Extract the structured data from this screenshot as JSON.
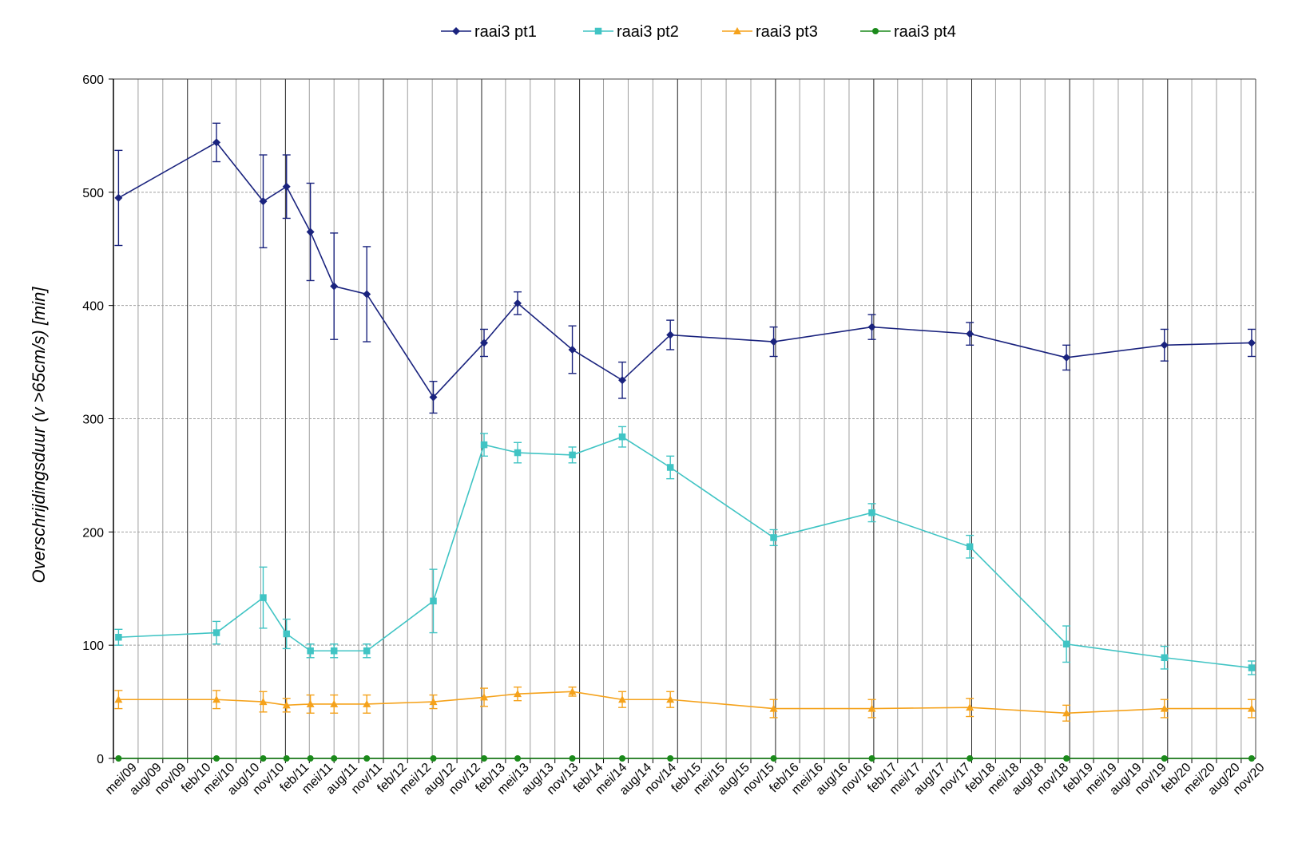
{
  "chart_data": {
    "type": "line",
    "title": "",
    "xlabel": "",
    "ylabel": "Overschrijdingsduur  (v >65cm/s) [min]",
    "ylim": [
      0,
      600
    ],
    "yticks": [
      0,
      100,
      200,
      300,
      400,
      500,
      600
    ],
    "grid": true,
    "legend_position": "top-center",
    "categories": [
      "mei/09",
      "aug/09",
      "nov/09",
      "feb/10",
      "mei/10",
      "aug/10",
      "nov/10",
      "feb/11",
      "mei/11",
      "aug/11",
      "nov/11",
      "feb/12",
      "mei/12",
      "aug/12",
      "nov/12",
      "feb/13",
      "mei/13",
      "aug/13",
      "nov/13",
      "feb/14",
      "mei/14",
      "aug/14",
      "nov/14",
      "feb/15",
      "mei/15",
      "aug/15",
      "nov/15",
      "feb/16",
      "mei/16",
      "aug/16",
      "nov/16",
      "feb/17",
      "mei/17",
      "aug/17",
      "nov/17",
      "feb/18",
      "mei/18",
      "aug/18",
      "nov/18",
      "feb/19",
      "mei/19",
      "aug/19",
      "nov/19",
      "feb/20",
      "mei/20",
      "aug/20",
      "nov/20"
    ],
    "x_dates": [
      "2009-05",
      "2009-08",
      "2009-11",
      "2010-02",
      "2010-05",
      "2010-08",
      "2010-11",
      "2011-02",
      "2011-05",
      "2011-08",
      "2011-11",
      "2012-02",
      "2012-05",
      "2012-08",
      "2012-11",
      "2013-02",
      "2013-05",
      "2013-08",
      "2013-11",
      "2014-02",
      "2014-05",
      "2014-08",
      "2014-11",
      "2015-02",
      "2015-05",
      "2015-08",
      "2015-11",
      "2016-02",
      "2016-05",
      "2016-08",
      "2016-11",
      "2017-02",
      "2017-05",
      "2017-08",
      "2017-11",
      "2018-02",
      "2018-05",
      "2018-08",
      "2018-11",
      "2019-02",
      "2019-05",
      "2019-08",
      "2019-11",
      "2020-02",
      "2020-05",
      "2020-08",
      "2020-11"
    ],
    "series": [
      {
        "name": "raai3 pt1",
        "color": "#1a237e",
        "marker": "diamond",
        "points": [
          {
            "x": "2009-05-20",
            "y": 495,
            "err": 42
          },
          {
            "x": "2010-05-20",
            "y": 544,
            "err": 17
          },
          {
            "x": "2010-11-10",
            "y": 492,
            "err": 41
          },
          {
            "x": "2011-02-05",
            "y": 505,
            "err": 28
          },
          {
            "x": "2011-05-05",
            "y": 465,
            "err": 43
          },
          {
            "x": "2011-08-01",
            "y": 417,
            "err": 47
          },
          {
            "x": "2011-12-01",
            "y": 410,
            "err": 42
          },
          {
            "x": "2012-08-05",
            "y": 319,
            "err": 14
          },
          {
            "x": "2013-02-10",
            "y": 367,
            "err": 12
          },
          {
            "x": "2013-06-15",
            "y": 402,
            "err": 10
          },
          {
            "x": "2014-01-05",
            "y": 361,
            "err": 21
          },
          {
            "x": "2014-07-10",
            "y": 334,
            "err": 16
          },
          {
            "x": "2015-01-05",
            "y": 374,
            "err": 13
          },
          {
            "x": "2016-01-25",
            "y": 368,
            "err": 13
          },
          {
            "x": "2017-01-25",
            "y": 381,
            "err": 11
          },
          {
            "x": "2018-01-25",
            "y": 375,
            "err": 10
          },
          {
            "x": "2019-01-20",
            "y": 354,
            "err": 11
          },
          {
            "x": "2020-01-20",
            "y": 365,
            "err": 14
          },
          {
            "x": "2020-12-10",
            "y": 367,
            "err": 12
          }
        ]
      },
      {
        "name": "raai3 pt2",
        "color": "#40c4c4",
        "marker": "square",
        "points": [
          {
            "x": "2009-05-20",
            "y": 107,
            "err": 7
          },
          {
            "x": "2010-05-20",
            "y": 111,
            "err": 10
          },
          {
            "x": "2010-11-10",
            "y": 142,
            "err": 27
          },
          {
            "x": "2011-02-05",
            "y": 110,
            "err": 13
          },
          {
            "x": "2011-05-05",
            "y": 95,
            "err": 6
          },
          {
            "x": "2011-08-01",
            "y": 95,
            "err": 6
          },
          {
            "x": "2011-12-01",
            "y": 95,
            "err": 6
          },
          {
            "x": "2012-08-05",
            "y": 139,
            "err": 28
          },
          {
            "x": "2013-02-10",
            "y": 277,
            "err": 10
          },
          {
            "x": "2013-06-15",
            "y": 270,
            "err": 9
          },
          {
            "x": "2014-01-05",
            "y": 268,
            "err": 7
          },
          {
            "x": "2014-07-10",
            "y": 284,
            "err": 9
          },
          {
            "x": "2015-01-05",
            "y": 257,
            "err": 10
          },
          {
            "x": "2016-01-25",
            "y": 195,
            "err": 7
          },
          {
            "x": "2017-01-25",
            "y": 217,
            "err": 8
          },
          {
            "x": "2018-01-25",
            "y": 187,
            "err": 10
          },
          {
            "x": "2019-01-20",
            "y": 101,
            "err": 16
          },
          {
            "x": "2020-01-20",
            "y": 89,
            "err": 10
          },
          {
            "x": "2020-12-10",
            "y": 80,
            "err": 6
          }
        ]
      },
      {
        "name": "raai3 pt3",
        "color": "#f5a21b",
        "marker": "triangle",
        "points": [
          {
            "x": "2009-05-20",
            "y": 52,
            "err": 8
          },
          {
            "x": "2010-05-20",
            "y": 52,
            "err": 8
          },
          {
            "x": "2010-11-10",
            "y": 50,
            "err": 9
          },
          {
            "x": "2011-02-05",
            "y": 47,
            "err": 6
          },
          {
            "x": "2011-05-05",
            "y": 48,
            "err": 8
          },
          {
            "x": "2011-08-01",
            "y": 48,
            "err": 8
          },
          {
            "x": "2011-12-01",
            "y": 48,
            "err": 8
          },
          {
            "x": "2012-08-05",
            "y": 50,
            "err": 6
          },
          {
            "x": "2013-02-10",
            "y": 54,
            "err": 8
          },
          {
            "x": "2013-06-15",
            "y": 57,
            "err": 6
          },
          {
            "x": "2014-01-05",
            "y": 59,
            "err": 4
          },
          {
            "x": "2014-07-10",
            "y": 52,
            "err": 7
          },
          {
            "x": "2015-01-05",
            "y": 52,
            "err": 7
          },
          {
            "x": "2016-01-25",
            "y": 44,
            "err": 8
          },
          {
            "x": "2017-01-25",
            "y": 44,
            "err": 8
          },
          {
            "x": "2018-01-25",
            "y": 45,
            "err": 8
          },
          {
            "x": "2019-01-20",
            "y": 40,
            "err": 7
          },
          {
            "x": "2020-01-20",
            "y": 44,
            "err": 8
          },
          {
            "x": "2020-12-10",
            "y": 44,
            "err": 8
          }
        ]
      },
      {
        "name": "raai3 pt4",
        "color": "#1b8a1b",
        "marker": "circle",
        "points": [
          {
            "x": "2009-05-20",
            "y": 0
          },
          {
            "x": "2010-05-20",
            "y": 0
          },
          {
            "x": "2010-11-10",
            "y": 0
          },
          {
            "x": "2011-02-05",
            "y": 0
          },
          {
            "x": "2011-05-05",
            "y": 0
          },
          {
            "x": "2011-08-01",
            "y": 0
          },
          {
            "x": "2011-12-01",
            "y": 0
          },
          {
            "x": "2012-08-05",
            "y": 0
          },
          {
            "x": "2013-02-10",
            "y": 0
          },
          {
            "x": "2013-06-15",
            "y": 0
          },
          {
            "x": "2014-01-05",
            "y": 0
          },
          {
            "x": "2014-07-10",
            "y": 0
          },
          {
            "x": "2015-01-05",
            "y": 0
          },
          {
            "x": "2016-01-25",
            "y": 0
          },
          {
            "x": "2017-01-25",
            "y": 0
          },
          {
            "x": "2018-01-25",
            "y": 0
          },
          {
            "x": "2019-01-20",
            "y": 0
          },
          {
            "x": "2020-01-20",
            "y": 0
          },
          {
            "x": "2020-12-10",
            "y": 0
          }
        ]
      }
    ]
  }
}
